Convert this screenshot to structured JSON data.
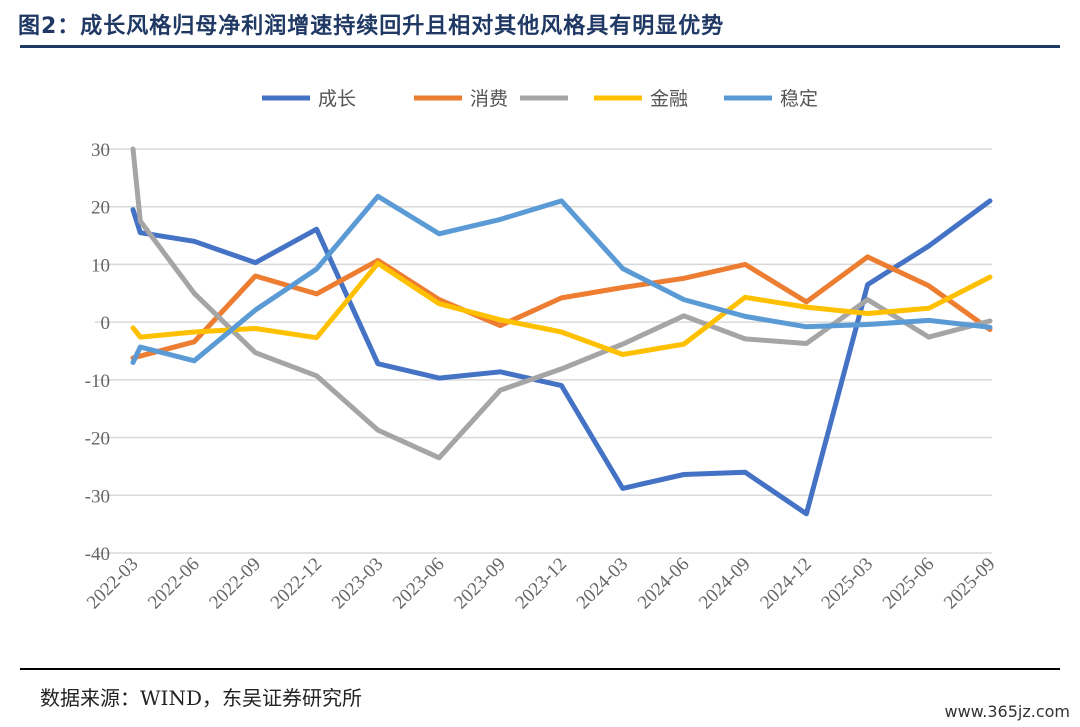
{
  "title": "图2：成长风格归母净利润增速持续回升且相对其他风格具有明显优势",
  "source": "数据来源：WIND，东吴证券研究所",
  "watermark": "www.365jz.com",
  "colors": {
    "title": "#1f3864",
    "成长": "#4472c4",
    "消费": "#ed7d31",
    "gray": "#a5a5a5",
    "金融": "#ffc000",
    "稳定": "#5b9bd5",
    "grid": "#d9d9d9"
  },
  "chart_data": {
    "type": "line",
    "categories": [
      "2022-03",
      "2022-06",
      "2022-09",
      "2022-12",
      "2023-03",
      "2023-06",
      "2023-09",
      "2023-12",
      "2024-03",
      "2024-06",
      "2024-09",
      "2024-12",
      "2025-03",
      "2025-06",
      "2025-09"
    ],
    "ylim": [
      -40,
      30
    ],
    "yticks": [
      30,
      20,
      10,
      0,
      -10,
      -20,
      -30,
      -40
    ],
    "legend_position": "top",
    "grid": true,
    "series": [
      {
        "name": "成长",
        "color": "#4472c4",
        "x": [
          0,
          0.12,
          1,
          2,
          3,
          4,
          5,
          6,
          7,
          8,
          9,
          10,
          11,
          12,
          13,
          14
        ],
        "y": [
          19.5,
          15.5,
          14,
          10.3,
          16.1,
          -7.2,
          -9.7,
          -8.6,
          -11,
          -28.8,
          -26.4,
          -26,
          -33.2,
          6.5,
          13.2,
          21
        ]
      },
      {
        "name": "消费",
        "color": "#ed7d31",
        "x": [
          0,
          1,
          2,
          3,
          4,
          5,
          6,
          7,
          8,
          9,
          10,
          11,
          12,
          13,
          14
        ],
        "y": [
          -6.2,
          -3.4,
          8,
          4.9,
          10.7,
          3.9,
          -0.6,
          4.2,
          6,
          7.6,
          10,
          3.5,
          11.3,
          6.3,
          -1.3
        ]
      },
      {
        "name": "",
        "color": "#a5a5a5",
        "x": [
          0,
          0.12,
          1,
          2,
          3,
          4,
          5,
          6,
          7,
          8,
          9,
          10,
          11,
          12,
          13,
          14
        ],
        "y": [
          30,
          17.5,
          5,
          -5.3,
          -9.3,
          -18.7,
          -23.5,
          -11.8,
          -8.1,
          -3.8,
          1.1,
          -2.9,
          -3.7,
          3.9,
          -2.6,
          0.2
        ]
      },
      {
        "name": "金融",
        "color": "#ffc000",
        "x": [
          0,
          0.12,
          1,
          2,
          3,
          4,
          5,
          6,
          7,
          8,
          9,
          10,
          11,
          12,
          13,
          14
        ],
        "y": [
          -1,
          -2.6,
          -1.7,
          -1.1,
          -2.7,
          10.2,
          3.2,
          0.4,
          -1.7,
          -5.6,
          -3.8,
          4.3,
          2.6,
          1.5,
          2.4,
          7.8
        ]
      },
      {
        "name": "稳定",
        "color": "#5b9bd5",
        "x": [
          0,
          0.12,
          1,
          2,
          3,
          4,
          5,
          6,
          7,
          8,
          9,
          10,
          11,
          12,
          13,
          14
        ],
        "y": [
          -7,
          -4.3,
          -6.7,
          2.1,
          9.2,
          21.8,
          15.3,
          17.8,
          21,
          9.3,
          3.9,
          1,
          -0.8,
          -0.4,
          0.3,
          -0.9
        ]
      }
    ]
  }
}
